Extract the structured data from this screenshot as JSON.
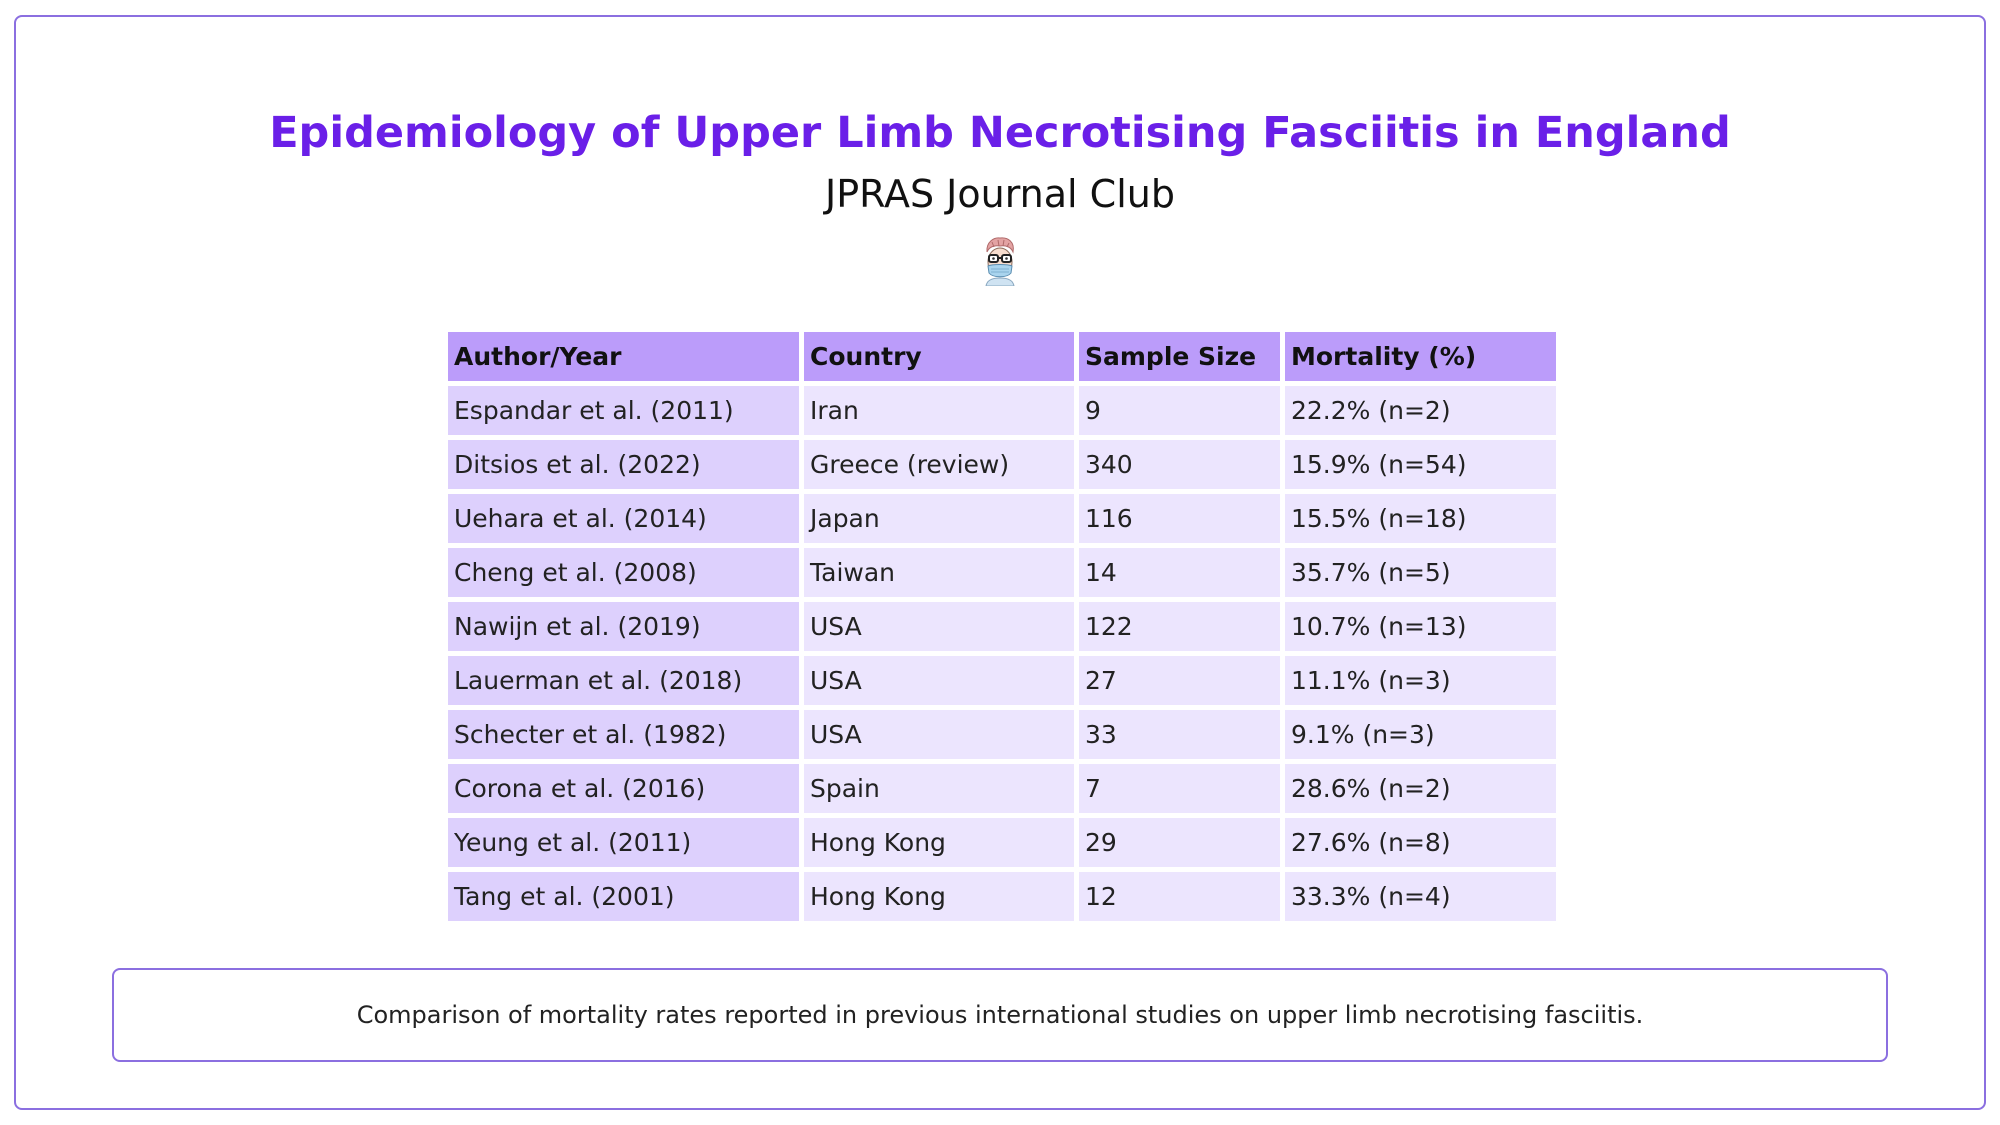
{
  "header": {
    "title": "Epidemiology of Upper Limb Necrotising Fasciitis in England",
    "subtitle": "JPRAS Journal Club"
  },
  "avatar": {
    "icon": "doctor-avatar-icon"
  },
  "table": {
    "headers": [
      "Author/Year",
      "Country",
      "Sample Size",
      "Mortality (%)"
    ],
    "rows": [
      [
        "Espandar et al. (2011)",
        "Iran",
        "9",
        "22.2% (n=2)"
      ],
      [
        "Ditsios et al. (2022)",
        "Greece (review)",
        "340",
        "15.9% (n=54)"
      ],
      [
        "Uehara et al. (2014)",
        "Japan",
        "116",
        "15.5% (n=18)"
      ],
      [
        "Cheng et al. (2008)",
        "Taiwan",
        "14",
        "35.7% (n=5)"
      ],
      [
        "Nawijn et al. (2019)",
        "USA",
        "122",
        "10.7% (n=13)"
      ],
      [
        "Lauerman et al. (2018)",
        "USA",
        "27",
        "11.1% (n=3)"
      ],
      [
        "Schecter et al. (1982)",
        "USA",
        "33",
        "9.1% (n=3)"
      ],
      [
        "Corona et al. (2016)",
        "Spain",
        "7",
        "28.6% (n=2)"
      ],
      [
        "Yeung et al. (2011)",
        "Hong Kong",
        "29",
        "27.6% (n=8)"
      ],
      [
        "Tang et al. (2001)",
        "Hong Kong",
        "12",
        "33.3% (n=4)"
      ]
    ]
  },
  "caption": "Comparison of mortality rates reported in previous international studies on upper limb necrotising fasciitis.",
  "colors": {
    "accent": "#6a1fe8",
    "border": "#8b6fe0",
    "header_cell": "#bb9cfa",
    "first_col_cell": "#ddd0fd",
    "body_cell": "#ece5fe"
  }
}
